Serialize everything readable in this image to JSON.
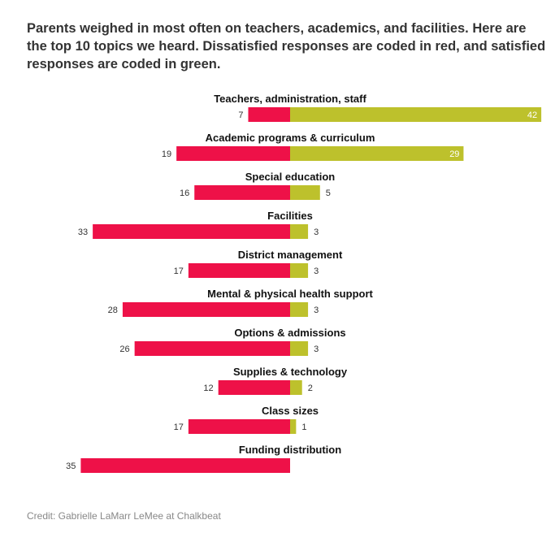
{
  "title": "Parents weighed in most often on teachers, academics, and facilities. Here are the top 10 topics we heard. Dissatisfied responses are coded in red, and satisfied responses are coded in green.",
  "credit": "Credit: Gabrielle LaMarr LeMee at Chalkbeat",
  "colors": {
    "dissatisfied": "#ee1148",
    "satisfied": "#bdc12c"
  },
  "chart_data": {
    "type": "bar",
    "orientation": "horizontal-diverging",
    "categories": [
      "Teachers, administration, staff",
      "Academic programs & curriculum",
      "Special education",
      "Facilities",
      "District management",
      "Mental & physical health support",
      "Options & admissions",
      "Supplies & technology",
      "Class sizes",
      "Funding distribution"
    ],
    "series": [
      {
        "values": [
          7,
          19,
          16,
          33,
          17,
          28,
          26,
          12,
          17,
          35
        ]
      },
      {
        "values": [
          42,
          29,
          5,
          3,
          3,
          3,
          3,
          2,
          1,
          0
        ]
      }
    ],
    "title": "",
    "xlabel": "",
    "ylabel": "",
    "grid": false
  }
}
